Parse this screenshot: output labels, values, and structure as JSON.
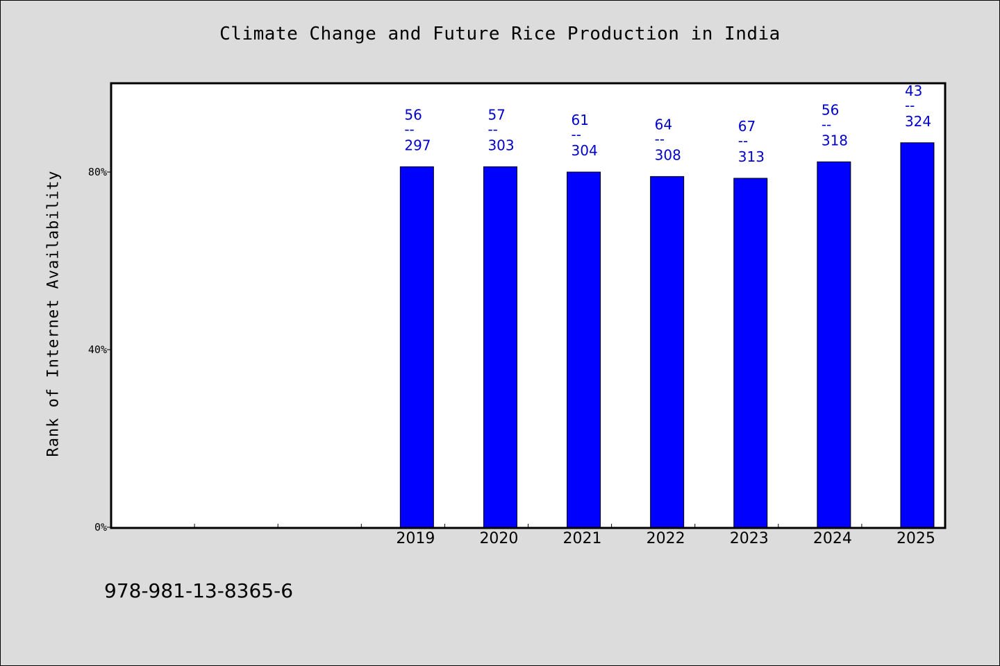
{
  "chart_data": {
    "type": "bar",
    "title": "Climate Change and Future Rice Production in India",
    "xlabel": "",
    "ylabel": "Rank of Internet Availability",
    "categories": [
      "",
      "",
      "",
      "2019",
      "2020",
      "2021",
      "2022",
      "2023",
      "2024",
      "2025"
    ],
    "values": [
      null,
      null,
      null,
      81.2,
      81.2,
      80.0,
      79.0,
      78.6,
      82.3,
      86.6
    ],
    "top_labels": [
      "",
      "",
      "",
      "56",
      "57",
      "61",
      "64",
      "67",
      "56",
      "43"
    ],
    "separator": "--",
    "bottom_labels": [
      "",
      "",
      "",
      "297",
      "303",
      "304",
      "308",
      "313",
      "318",
      "324"
    ],
    "ylim": [
      0,
      100
    ],
    "y_ticks": [
      {
        "value": 0,
        "label": "0%"
      },
      {
        "value": 40,
        "label": "40%"
      },
      {
        "value": 80,
        "label": "80%"
      }
    ],
    "grid": false,
    "legend": "none",
    "colors": {
      "bar": "#0000ff",
      "label": "#0000cc",
      "plot_bg": "#ffffff",
      "page_bg": "#dcdcdc"
    }
  },
  "footer_text": "978-981-13-8365-6"
}
